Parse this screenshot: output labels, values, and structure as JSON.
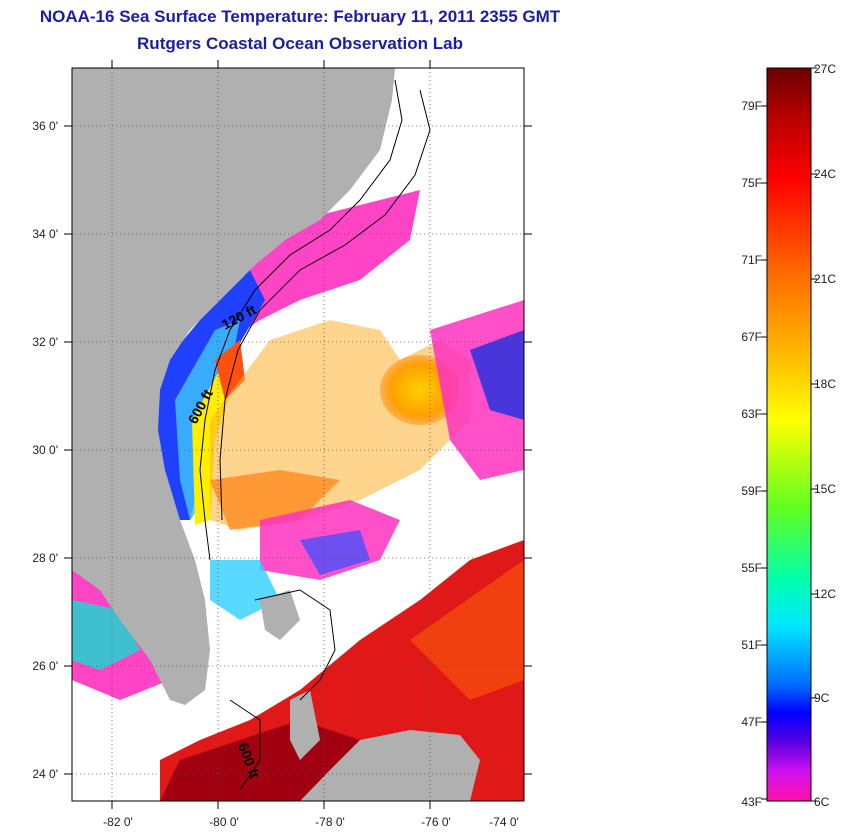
{
  "title": "NOAA-16 Sea Surface Temperature:  February 11, 2011 2355 GMT",
  "subtitle": "Rutgers Coastal Ocean Observation Lab",
  "map": {
    "lat_ticks": [
      "36 0'",
      "34 0'",
      "32 0'",
      "30 0'",
      "28 0'",
      "26 0'",
      "24 0'"
    ],
    "lon_ticks": [
      "-82 0'",
      "-80 0'",
      "-78 0'",
      "-76 0'",
      "-74 0'"
    ],
    "contour_labels": [
      "120 ft",
      "600 ft",
      "600 ft"
    ],
    "colors": {
      "land": "#b0b0b0",
      "cloud": "#ffffff",
      "gulf_stream": "#e02818"
    }
  },
  "colorbar": {
    "fahrenheit": [
      "79F",
      "75F",
      "71F",
      "67F",
      "63F",
      "59F",
      "55F",
      "51F",
      "47F",
      "43F"
    ],
    "celsius": [
      "27C",
      "24C",
      "21C",
      "18C",
      "15C",
      "12C",
      "9C",
      "6C"
    ]
  }
}
